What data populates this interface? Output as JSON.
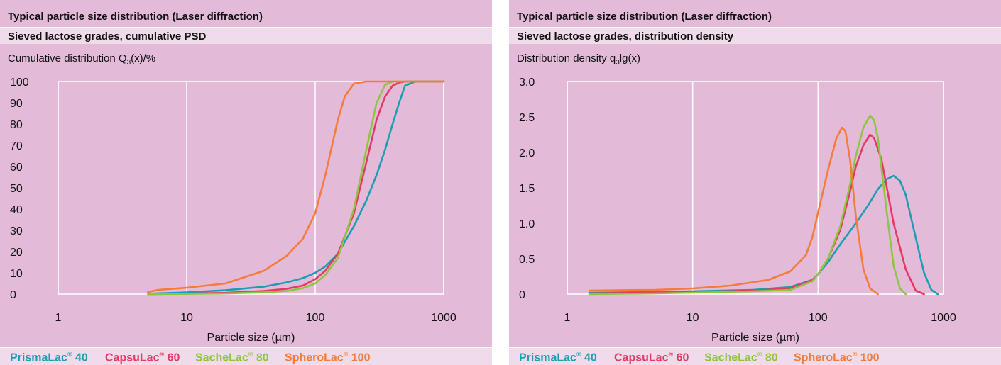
{
  "colors": {
    "background": "#e4bad9",
    "band": "#f0dbeb",
    "grid": "#ffffff",
    "PrismaLac 40": "#1a9fb2",
    "CapsuLac 60": "#e23a62",
    "SacheLac 80": "#8cc63f",
    "SpheroLac 100": "#f47b3a"
  },
  "charts": [
    {
      "header": "Typical particle size distribution (Laser diffraction)",
      "subheader": "Sieved lactose grades, cumulative PSD",
      "ylabel_main": "Cumulative distribution Q",
      "ylabel_sub": "3",
      "ylabel_tail": "(x)/%",
      "xlabel": "Particle size (µm)",
      "x_ticks": [
        "1",
        "10",
        "100",
        "1000"
      ],
      "y_ticks": [
        "0",
        "10",
        "20",
        "30",
        "40",
        "50",
        "60",
        "70",
        "80",
        "90",
        "100"
      ],
      "legend": [
        {
          "name": "PrismaLac",
          "sup": "®",
          "num": "40"
        },
        {
          "name": "CapsuLac",
          "sup": "®",
          "num": "60"
        },
        {
          "name": "SacheLac",
          "sup": "®",
          "num": "80"
        },
        {
          "name": "SpheroLac",
          "sup": "®",
          "num": "100"
        }
      ]
    },
    {
      "header": "Typical particle size distribution (Laser diffraction)",
      "subheader": "Sieved lactose grades, distribution density",
      "ylabel_main": "Distribution density q",
      "ylabel_sub": "3",
      "ylabel_tail": "lg(x)",
      "xlabel": "Particle size (µm)",
      "x_ticks": [
        "1",
        "10",
        "100",
        "1000"
      ],
      "y_ticks": [
        "0",
        "0.5",
        "1.0",
        "1.5",
        "2.0",
        "2.5",
        "3.0"
      ],
      "legend": [
        {
          "name": "PrismaLac",
          "sup": "®",
          "num": "40"
        },
        {
          "name": "CapsuLac",
          "sup": "®",
          "num": "60"
        },
        {
          "name": "SacheLac",
          "sup": "®",
          "num": "80"
        },
        {
          "name": "SpheroLac",
          "sup": "®",
          "num": "100"
        }
      ]
    }
  ],
  "chart_data": [
    {
      "type": "line",
      "title": "Sieved lactose grades, cumulative PSD",
      "xlabel": "Particle size (µm)",
      "ylabel": "Cumulative distribution Q3(x)/%",
      "xscale": "log",
      "xlim": [
        1,
        1000
      ],
      "ylim": [
        0,
        100
      ],
      "grid": true,
      "legend_position": "bottom",
      "series": [
        {
          "name": "PrismaLac® 40",
          "x": [
            5,
            10,
            20,
            40,
            60,
            80,
            100,
            120,
            150,
            200,
            250,
            300,
            350,
            400,
            450,
            500,
            600,
            800,
            1000
          ],
          "y": [
            0.2,
            0.8,
            1.8,
            3.5,
            5.5,
            7.5,
            10,
            13,
            19,
            32,
            44,
            56,
            68,
            80,
            90,
            98,
            100,
            100,
            100
          ]
        },
        {
          "name": "CapsuLac® 60",
          "x": [
            5,
            10,
            20,
            40,
            60,
            80,
            100,
            120,
            150,
            200,
            250,
            300,
            350,
            400,
            450,
            500,
            600,
            800,
            1000
          ],
          "y": [
            0,
            0.2,
            0.6,
            1.5,
            2.5,
            4,
            7,
            11,
            19,
            38,
            62,
            82,
            93,
            98,
            99.5,
            100,
            100,
            100,
            100
          ]
        },
        {
          "name": "SacheLac® 80",
          "x": [
            5,
            10,
            20,
            40,
            60,
            80,
            100,
            120,
            150,
            200,
            250,
            300,
            350,
            400,
            450,
            500,
            600,
            800,
            1000
          ],
          "y": [
            0,
            0.1,
            0.3,
            0.8,
            1.5,
            2.8,
            5,
            9,
            17,
            40,
            68,
            90,
            98.5,
            100,
            100,
            100,
            100,
            100,
            100
          ]
        },
        {
          "name": "SpheroLac® 100",
          "x": [
            5,
            6,
            10,
            20,
            40,
            60,
            80,
            100,
            120,
            150,
            170,
            200,
            250,
            300,
            500,
            1000
          ],
          "y": [
            1,
            2,
            3,
            5,
            11,
            18,
            26,
            38,
            56,
            82,
            93,
            99,
            100,
            100,
            100,
            100
          ]
        }
      ]
    },
    {
      "type": "line",
      "title": "Sieved lactose grades, distribution density",
      "xlabel": "Particle size (µm)",
      "ylabel": "Distribution density q3lg(x)",
      "xscale": "log",
      "xlim": [
        1,
        1000
      ],
      "ylim": [
        0,
        3.0
      ],
      "grid": true,
      "legend_position": "bottom",
      "series": [
        {
          "name": "PrismaLac® 40",
          "x": [
            1.5,
            5,
            10,
            30,
            60,
            90,
            100,
            120,
            150,
            200,
            250,
            300,
            350,
            400,
            450,
            500,
            600,
            700,
            800,
            900
          ],
          "y": [
            0.02,
            0.03,
            0.04,
            0.06,
            0.1,
            0.2,
            0.28,
            0.45,
            0.7,
            1.0,
            1.25,
            1.48,
            1.62,
            1.67,
            1.6,
            1.4,
            0.8,
            0.3,
            0.06,
            0
          ]
        },
        {
          "name": "CapsuLac® 60",
          "x": [
            1.5,
            5,
            10,
            30,
            60,
            90,
            100,
            120,
            150,
            180,
            200,
            230,
            260,
            280,
            320,
            400,
            500,
            600,
            700
          ],
          "y": [
            0.01,
            0.02,
            0.03,
            0.05,
            0.08,
            0.2,
            0.28,
            0.5,
            0.9,
            1.45,
            1.8,
            2.1,
            2.25,
            2.2,
            1.9,
            1.0,
            0.35,
            0.05,
            0
          ]
        },
        {
          "name": "SacheLac® 80",
          "x": [
            1.5,
            5,
            10,
            30,
            60,
            90,
            100,
            120,
            150,
            180,
            200,
            230,
            260,
            280,
            300,
            350,
            400,
            450,
            500
          ],
          "y": [
            0,
            0.01,
            0.02,
            0.04,
            0.06,
            0.18,
            0.28,
            0.5,
            0.95,
            1.55,
            1.95,
            2.35,
            2.52,
            2.45,
            2.2,
            1.2,
            0.4,
            0.08,
            0
          ]
        },
        {
          "name": "SpheroLac® 100",
          "x": [
            1.5,
            5,
            10,
            20,
            40,
            60,
            80,
            90,
            100,
            120,
            140,
            155,
            165,
            180,
            200,
            230,
            260,
            300
          ],
          "y": [
            0.05,
            0.06,
            0.08,
            0.12,
            0.2,
            0.32,
            0.55,
            0.8,
            1.15,
            1.75,
            2.2,
            2.35,
            2.3,
            1.9,
            1.1,
            0.35,
            0.08,
            0
          ]
        }
      ]
    }
  ]
}
